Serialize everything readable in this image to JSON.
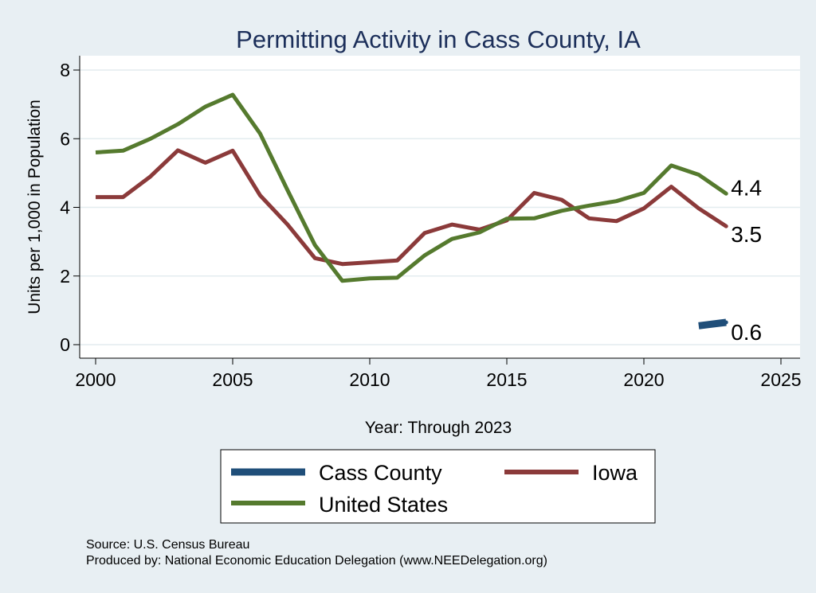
{
  "chart_data": {
    "type": "line",
    "title": "Permitting Activity in Cass County, IA",
    "xlabel": "Year: Through 2023",
    "ylabel": "Units per 1,000 in Population",
    "xlim": [
      2000,
      2025
    ],
    "ylim": [
      0,
      8
    ],
    "x_ticks": [
      "2000",
      "2005",
      "2010",
      "2015",
      "2020",
      "2025"
    ],
    "y_ticks": [
      "0",
      "2",
      "4",
      "6",
      "8"
    ],
    "grid": true,
    "legend_placement": "bottom",
    "series": [
      {
        "name": "Cass County",
        "color": "#1f4e79",
        "x": [
          2022,
          2023
        ],
        "values": [
          0.55,
          0.65
        ],
        "end_label": "0.6"
      },
      {
        "name": "Iowa",
        "color": "#8b3a3a",
        "x": [
          2000,
          2001,
          2002,
          2003,
          2004,
          2005,
          2006,
          2007,
          2008,
          2009,
          2010,
          2011,
          2012,
          2013,
          2014,
          2015,
          2016,
          2017,
          2018,
          2019,
          2020,
          2021,
          2022,
          2023
        ],
        "values": [
          4.3,
          4.3,
          4.9,
          5.66,
          5.3,
          5.65,
          4.35,
          3.5,
          2.52,
          2.35,
          2.4,
          2.45,
          3.25,
          3.5,
          3.35,
          3.62,
          4.42,
          4.22,
          3.68,
          3.6,
          3.97,
          4.6,
          3.97,
          3.45
        ],
        "end_label": "3.5"
      },
      {
        "name": "United States",
        "color": "#557a2e",
        "x": [
          2000,
          2001,
          2002,
          2003,
          2004,
          2005,
          2006,
          2007,
          2008,
          2009,
          2010,
          2011,
          2012,
          2013,
          2014,
          2015,
          2016,
          2017,
          2018,
          2019,
          2020,
          2021,
          2022,
          2023
        ],
        "values": [
          5.6,
          5.65,
          6.0,
          6.42,
          6.93,
          7.28,
          6.15,
          4.5,
          2.9,
          1.86,
          1.93,
          1.95,
          2.6,
          3.08,
          3.27,
          3.67,
          3.68,
          3.9,
          4.05,
          4.18,
          4.42,
          5.22,
          4.95,
          4.4
        ],
        "end_label": "4.4"
      }
    ],
    "legend": [
      "Cass County",
      "Iowa",
      "United States"
    ]
  },
  "notes": {
    "source": "Source: U.S. Census Bureau",
    "produced": "Produced by: National Economic Education Delegation (www.NEEDelegation.org)"
  }
}
